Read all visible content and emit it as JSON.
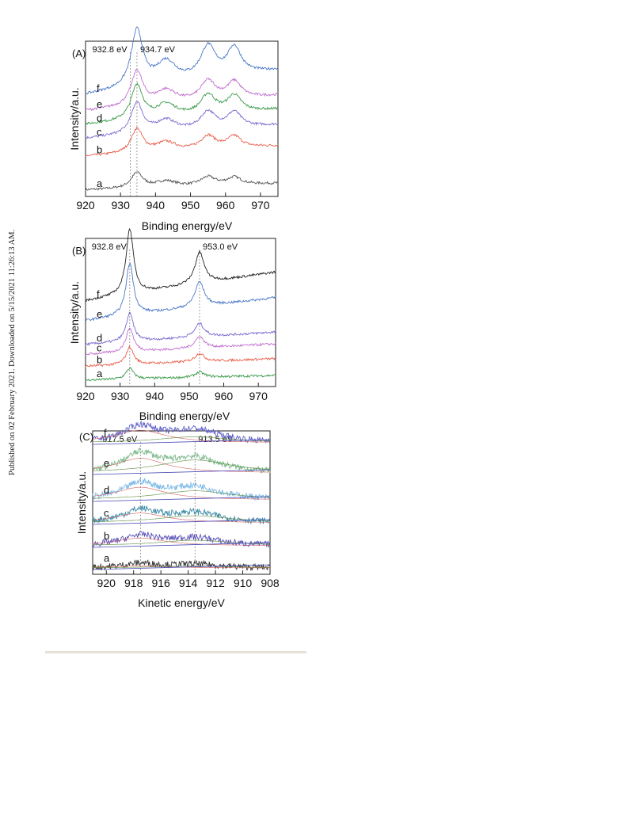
{
  "side_note": "Published on 02 February 2021. Downloaded on 5/15/2021 11:26:13 AM.",
  "chart_data": [
    {
      "panel": "(A)",
      "type": "line",
      "xlabel": "Binding energy/eV",
      "ylabel": "Intensity/a.u.",
      "xlim": [
        920,
        975
      ],
      "xticks": [
        920,
        930,
        940,
        950,
        960,
        970
      ],
      "x_reversed": false,
      "grid": false,
      "annotations": [
        {
          "text": "932.8 eV",
          "x": 932.8,
          "dashed_line": true
        },
        {
          "text": "934.7 eV",
          "x": 934.7,
          "dashed_line": true
        }
      ],
      "series": [
        {
          "name": "a",
          "color": "#555555",
          "offset": 0,
          "scale": 0.35
        },
        {
          "name": "b",
          "color": "#e8604c",
          "offset": 34,
          "scale": 0.55
        },
        {
          "name": "c",
          "color": "#7a6ad0",
          "offset": 52,
          "scale": 0.72
        },
        {
          "name": "d",
          "color": "#3a9a4a",
          "offset": 66,
          "scale": 0.8
        },
        {
          "name": "e",
          "color": "#c070d0",
          "offset": 80,
          "scale": 0.8
        },
        {
          "name": "f",
          "color": "#4b78c8",
          "offset": 96,
          "scale": 1.3
        }
      ],
      "peaks": [
        [
          934.7,
          2.0,
          100
        ],
        [
          943.0,
          3.5,
          38
        ],
        [
          955.0,
          2.6,
          55
        ],
        [
          962.5,
          2.4,
          48
        ]
      ],
      "baseline_slope": 0.9
    },
    {
      "panel": "(B)",
      "type": "line",
      "xlabel": "Binding energy/eV",
      "ylabel": "Intensity/a.u.",
      "xlim": [
        920,
        975
      ],
      "xticks": [
        920,
        930,
        940,
        950,
        960,
        970
      ],
      "x_reversed": false,
      "grid": false,
      "annotations": [
        {
          "text": "932.8 eV",
          "x": 932.8,
          "dashed_line": true
        },
        {
          "text": "953.0 eV",
          "x": 953.0,
          "dashed_line": true
        }
      ],
      "series": [
        {
          "name": "a",
          "color": "#3a9a4a",
          "offset": 0,
          "scale": 0.25
        },
        {
          "name": "b",
          "color": "#e8604c",
          "offset": 14,
          "scale": 0.4
        },
        {
          "name": "c",
          "color": "#c070d0",
          "offset": 26,
          "scale": 0.55
        },
        {
          "name": "d",
          "color": "#7a6ad0",
          "offset": 36,
          "scale": 0.65
        },
        {
          "name": "e",
          "color": "#4b78c8",
          "offset": 60,
          "scale": 1.2
        },
        {
          "name": "f",
          "color": "#222222",
          "offset": 80,
          "scale": 1.5
        }
      ],
      "peaks": [
        [
          932.8,
          1.3,
          100
        ],
        [
          953.0,
          1.6,
          48
        ]
      ],
      "baseline_slope": 0.9
    },
    {
      "panel": "(C)",
      "type": "line",
      "xlabel": "Kinetic energy/eV",
      "ylabel": "Intensity/a.u.",
      "xlim": [
        921,
        908
      ],
      "xticks": [
        920,
        918,
        916,
        914,
        912,
        910,
        908
      ],
      "x_reversed": true,
      "grid": false,
      "annotations": [
        {
          "text": "917.5 eV",
          "x": 917.5,
          "dashed_line": true
        },
        {
          "text": "913.5 eV",
          "x": 913.5,
          "dashed_line": true
        }
      ],
      "series": [
        {
          "name": "a",
          "color": "#333333",
          "offset": 0,
          "scale": 0.25,
          "fit": [
            0.6,
            0.7
          ]
        },
        {
          "name": "b",
          "color": "#5b52b8",
          "offset": 28,
          "scale": 0.55,
          "fit": [
            1.0,
            0.9
          ]
        },
        {
          "name": "c",
          "color": "#3a8aa8",
          "offset": 57,
          "scale": 0.7,
          "fit": [
            1.0,
            0.9
          ]
        },
        {
          "name": "d",
          "color": "#7ab8e8",
          "offset": 86,
          "scale": 0.9,
          "fit": [
            1.0,
            0.9
          ]
        },
        {
          "name": "e",
          "color": "#7ab88a",
          "offset": 120,
          "scale": 1.05,
          "fit": [
            1.0,
            1.1
          ]
        },
        {
          "name": "f",
          "color": "#6060c8",
          "offset": 158,
          "scale": 0.9,
          "fit": [
            1.0,
            0.6
          ]
        }
      ],
      "peaks": [
        [
          917.5,
          1.5,
          100
        ],
        [
          913.5,
          2.2,
          80
        ]
      ],
      "baseline_slope": 0.0
    }
  ]
}
